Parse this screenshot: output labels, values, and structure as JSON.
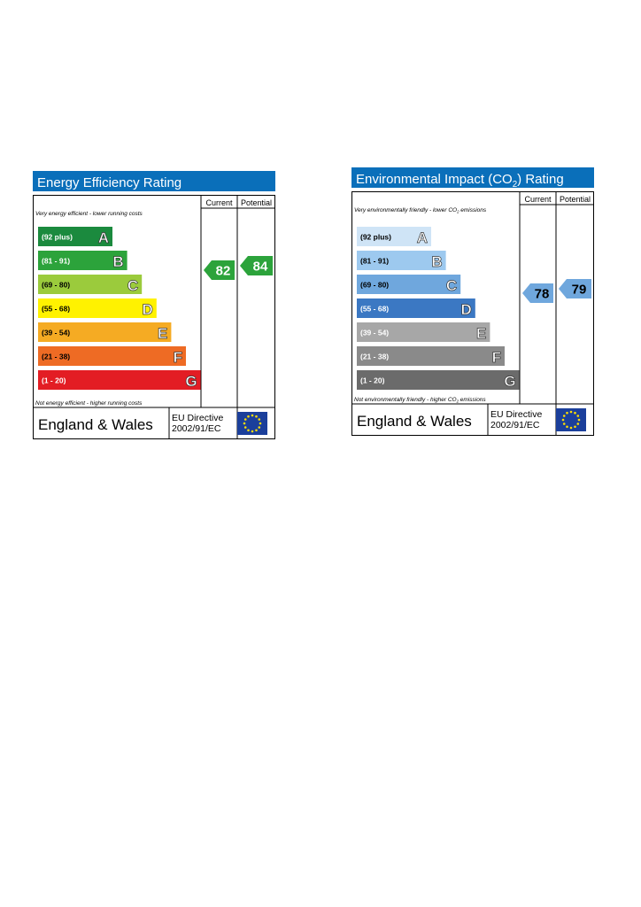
{
  "panels": [
    {
      "title": [
        "Energy Efficiency Rating"
      ],
      "columns": [
        "Current",
        "Potential"
      ],
      "top_note": [
        "Very energy efficient - lower running costs"
      ],
      "bottom_note": [
        "Not energy efficient - higher running costs"
      ],
      "bands": [
        {
          "range": "(92 plus)",
          "letter": "A",
          "color": "#1b8a3e"
        },
        {
          "range": "(81 - 91)",
          "letter": "B",
          "color": "#2ca33b"
        },
        {
          "range": "(69 - 80)",
          "letter": "C",
          "color": "#9bcb3c"
        },
        {
          "range": "(55 - 68)",
          "letter": "D",
          "color": "#fff200"
        },
        {
          "range": "(39 - 54)",
          "letter": "E",
          "color": "#f5ab23"
        },
        {
          "range": "(21 - 38)",
          "letter": "F",
          "color": "#ee6b24"
        },
        {
          "range": "(1 - 20)",
          "letter": "G",
          "color": "#e31d24"
        }
      ],
      "current": 82,
      "potential": 84,
      "region": "England & Wales",
      "directive": [
        "EU Directive",
        "2002/91/EC"
      ]
    },
    {
      "title": [
        "Environmental Impact (CO",
        "2",
        ") Rating"
      ],
      "columns": [
        "Current",
        "Potential"
      ],
      "top_note": [
        "Very environmentally friendly - lower CO",
        "2",
        " emissions"
      ],
      "bottom_note": [
        "Not environmentally friendly - higher CO",
        "2",
        " emissions"
      ],
      "bands": [
        {
          "range": "(92 plus)",
          "letter": "A",
          "color": "#cfe4f6"
        },
        {
          "range": "(81 - 91)",
          "letter": "B",
          "color": "#9dc9ef"
        },
        {
          "range": "(69 - 80)",
          "letter": "C",
          "color": "#6fa7dd"
        },
        {
          "range": "(55 - 68)",
          "letter": "D",
          "color": "#3b78c3"
        },
        {
          "range": "(39 - 54)",
          "letter": "E",
          "color": "#a7a7a7"
        },
        {
          "range": "(21 - 38)",
          "letter": "F",
          "color": "#8a8a8a"
        },
        {
          "range": "(1 - 20)",
          "letter": "G",
          "color": "#6b6b6b"
        }
      ],
      "current": 78,
      "potential": 79,
      "region": "England & Wales",
      "directive": [
        "EU Directive",
        "2002/91/EC"
      ]
    }
  ]
}
